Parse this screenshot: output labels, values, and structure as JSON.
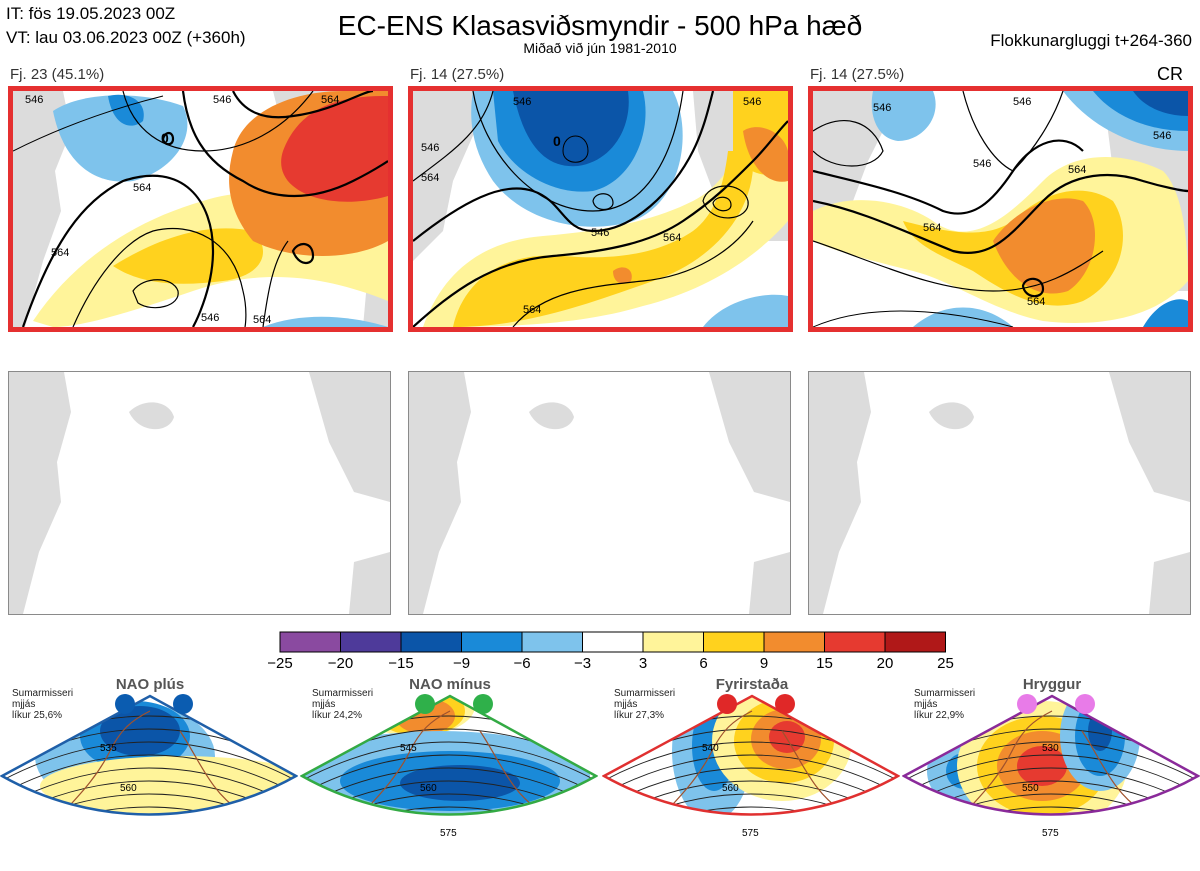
{
  "header": {
    "it_line": "IT: fös 19.05.2023 00Z",
    "vt_line": "VT: lau 03.06.2023 00Z  (+360h)",
    "title": "EC-ENS Klasasviðsmyndir - 500 hPa hæð",
    "subtitle": "Miðað við jún 1981-2010",
    "window": "Flokkunargluggi t+264-360",
    "cr_label": "CR"
  },
  "clusters": [
    {
      "label": "Fj. 23 (45.1%)",
      "contours": [
        "546",
        "564",
        "564",
        "546",
        "0",
        "564",
        "546",
        "564"
      ]
    },
    {
      "label": "Fj. 14 (27.5%)",
      "contours": [
        "546",
        "546",
        "564",
        "0",
        "546",
        "564",
        "564",
        "546"
      ]
    },
    {
      "label": "Fj. 14 (27.5%)",
      "contours": [
        "546",
        "546",
        "546",
        "564",
        "564",
        "546",
        "564"
      ]
    }
  ],
  "regimes": [
    {
      "name": "NAO plús",
      "season": "Sumarmisseri",
      "mode": "mjjás",
      "prob": "líkur 25,6%",
      "color": "#1f5fa8",
      "dot_color": "#0b5cb0",
      "contours": [
        "535",
        "560"
      ]
    },
    {
      "name": "NAO mínus",
      "season": "Sumarmisseri",
      "mode": "mjjás",
      "prob": "líkur 24,2%",
      "color": "#33aa44",
      "dot_color": "#2fb04a",
      "contours": [
        "545",
        "560",
        "575"
      ]
    },
    {
      "name": "Fyrirstaða",
      "season": "Sumarmisseri",
      "mode": "mjjás",
      "prob": "líkur 27,3%",
      "color": "#e03030",
      "dot_color": "#e02828",
      "contours": [
        "540",
        "560",
        "575"
      ]
    },
    {
      "name": "Hryggur",
      "season": "Sumarmisseri",
      "mode": "mjjás",
      "prob": "líkur 22,9%",
      "color": "#8a2a9a",
      "dot_color": "#e87be8",
      "contours": [
        "530",
        "550",
        "575"
      ]
    }
  ],
  "chart_data": {
    "type": "heatmap",
    "title": "EC-ENS Klasasviðsmyndir - 500 hPa hæð",
    "colorbar": {
      "ticks": [
        -25,
        -20,
        -15,
        -9,
        -6,
        -3,
        3,
        6,
        9,
        15,
        20,
        25
      ],
      "tick_labels": [
        "−25",
        "−20",
        "−15",
        "−9",
        "−6",
        "−3",
        "3",
        "6",
        "9",
        "15",
        "20",
        "25"
      ],
      "colors": [
        "#8a4aa0",
        "#4e3a9a",
        "#0b55a8",
        "#1a8ad8",
        "#7ec3ec",
        "#ffffff",
        "#fff49a",
        "#ffd21e",
        "#f28c2e",
        "#e63a30",
        "#b01818"
      ]
    },
    "clusters": [
      {
        "name": "Fj. 23",
        "members": 23,
        "percent": 45.1,
        "height_contours_dam": [
          546,
          564
        ]
      },
      {
        "name": "Fj. 14",
        "members": 14,
        "percent": 27.5,
        "height_contours_dam": [
          546,
          564
        ]
      },
      {
        "name": "Fj. 14",
        "members": 14,
        "percent": 27.5,
        "height_contours_dam": [
          546,
          564
        ]
      }
    ],
    "regimes": [
      {
        "name": "NAO plús",
        "probability_percent": 25.6
      },
      {
        "name": "NAO mínus",
        "probability_percent": 24.2
      },
      {
        "name": "Fyrirstaða",
        "probability_percent": 27.3
      },
      {
        "name": "Hryggur",
        "probability_percent": 22.9
      }
    ]
  }
}
